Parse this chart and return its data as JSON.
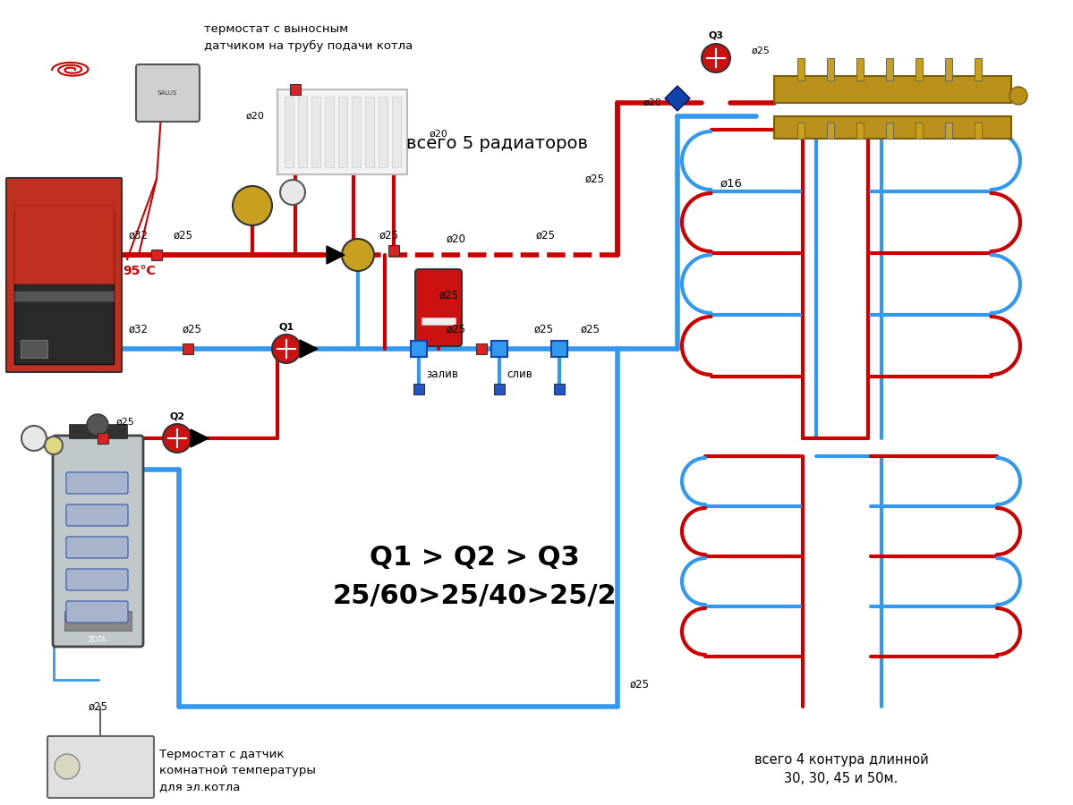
{
  "bg_color": "#ffffff",
  "red_color": "#cc0000",
  "blue_color": "#3399ee",
  "pipe_lw": 4,
  "coil_lw": 3,
  "title_text": "Q1 > Q2 > Q3\n25/60>25/40>25/2",
  "text_top_thermostat": "термостат с выносным\nдатчиком на трубу подачи котла",
  "text_radiators": "всего 5 радиаторов",
  "text_floor": "всего 4 контура длинной\n30, 30, 45 и 50м.",
  "text_temp": "95°С",
  "text_thermostat_bottom": "Термостат с датчик\nкомнатной температуры\nдля эл.котла",
  "text_d16": "ø16",
  "text_zaliv": "залив",
  "text_sliv": "слив"
}
